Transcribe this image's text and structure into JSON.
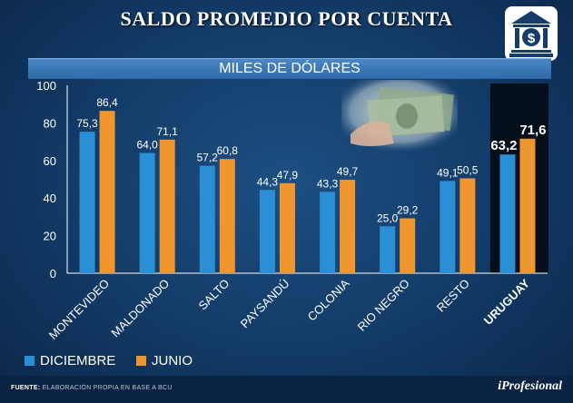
{
  "title": "SALDO PROMEDIO POR CUENTA",
  "subtitle": "MILES DE DÓLARES",
  "legend": {
    "dec_label": "DICIEMBRE",
    "jun_label": "JUNIO"
  },
  "footer": {
    "source_label": "FUENTE:",
    "source_text": "ELABORACIÓN PROPIA EN BASE A BCU",
    "brand": "iProfesional"
  },
  "colors": {
    "dec": "#2a8fd4",
    "jun": "#f0962f",
    "highlight_bg": "#050f1c"
  },
  "icons": {
    "bank": "bank-dollar-icon",
    "money": "dollar-bills-photo"
  },
  "chart_data": {
    "type": "bar",
    "categories": [
      "MONTEVIDEO",
      "MALDONADO",
      "SALTO",
      "PAYSANDÚ",
      "COLONIA",
      "RIO NEGRO",
      "RESTO",
      "URUGUAY"
    ],
    "series": [
      {
        "name": "DICIEMBRE",
        "values": [
          75.3,
          64.0,
          57.2,
          44.3,
          43.3,
          25.0,
          49.1,
          63.2
        ],
        "labels": [
          "75,3",
          "64,0",
          "57,2",
          "44,3",
          "43,3",
          "25,0",
          "49,1",
          "63,2"
        ]
      },
      {
        "name": "JUNIO",
        "values": [
          86.4,
          71.1,
          60.8,
          47.9,
          49.7,
          29.2,
          50.5,
          71.6
        ],
        "labels": [
          "86,4",
          "71,1",
          "60,8",
          "47,9",
          "49,7",
          "29,2",
          "50,5",
          "71,6"
        ]
      }
    ],
    "title": "SALDO PROMEDIO POR CUENTA",
    "ylabel": "MILES DE DÓLARES",
    "yticks": [
      "0",
      "20",
      "40",
      "60",
      "80",
      "100"
    ],
    "ylim": [
      0,
      100
    ],
    "highlight_category": "URUGUAY",
    "legend_position": "bottom-left"
  }
}
